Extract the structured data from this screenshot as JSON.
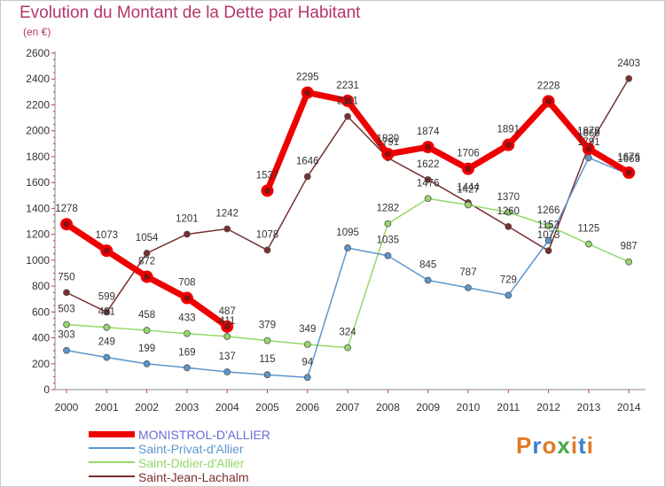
{
  "title": "Evolution du Montant de la Dette par Habitant",
  "subtitle": "(en €)",
  "logo": {
    "letters": [
      "P",
      "r",
      "o",
      "x",
      "i",
      "t",
      "i"
    ],
    "colors": [
      "#e07a26",
      "#3c7fd0",
      "#e07a26",
      "#49a844",
      "#e07a26",
      "#3c7fd0",
      "#e07a26"
    ]
  },
  "chart_data": {
    "type": "line",
    "title": "Evolution du Montant de la Dette par Habitant",
    "subtitle": "(en €)",
    "x": [
      "2000",
      "2001",
      "2002",
      "2003",
      "2004",
      "2005",
      "2006",
      "2007",
      "2008",
      "2009",
      "2010",
      "2011",
      "2012",
      "2013",
      "2014"
    ],
    "ylim": [
      0,
      2600
    ],
    "yticks": [
      0,
      200,
      400,
      600,
      800,
      1000,
      1200,
      1400,
      1600,
      1800,
      2000,
      2200,
      2400,
      2600
    ],
    "grid": false,
    "legend": "bottom-left",
    "series": [
      {
        "name": "MONISTROL-D'ALLIER",
        "color": "#ee0000",
        "legend_color": "#6a6ad8",
        "width": 7,
        "values": [
          1278,
          1073,
          872,
          708,
          487,
          1537,
          2295,
          2231,
          1820,
          1874,
          1706,
          1891,
          2228,
          1860,
          1676
        ],
        "breaks": [
          4
        ]
      },
      {
        "name": "Saint-Privat-d'Allier",
        "color": "#5b97cc",
        "legend_color": "#5b97cc",
        "width": 1.5,
        "values": [
          303,
          249,
          199,
          169,
          137,
          115,
          94,
          1095,
          1035,
          845,
          787,
          729,
          1152,
          1791,
          1663
        ],
        "breaks": []
      },
      {
        "name": "Saint-Didier-d'Allier",
        "color": "#94d86a",
        "legend_color": "#94d86a",
        "width": 1.5,
        "values": [
          503,
          481,
          458,
          433,
          411,
          379,
          349,
          324,
          1282,
          1476,
          1427,
          1370,
          1266,
          1125,
          987
        ],
        "breaks": []
      },
      {
        "name": "Saint-Jean-Lachalm",
        "color": "#7a2e2e",
        "legend_color": "#7a2e2e",
        "width": 1.5,
        "values": [
          750,
          599,
          1054,
          1201,
          1242,
          1078,
          1646,
          2111,
          1791,
          1622,
          1444,
          1260,
          1073,
          1879,
          2403
        ],
        "breaks": []
      }
    ]
  }
}
